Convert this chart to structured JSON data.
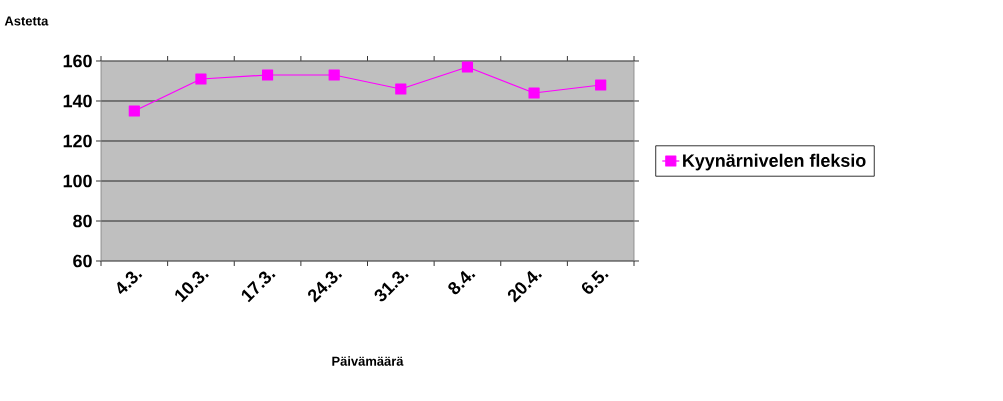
{
  "chart_data": {
    "type": "line",
    "xlabel": "Päivämäärä",
    "ylabel": "Astetta",
    "categories": [
      "4.3.",
      "10.3.",
      "17.3.",
      "24.3.",
      "31.3.",
      "8.4.",
      "20.4.",
      "6.5."
    ],
    "series": [
      {
        "name": "Kyynärnivelen fleksio",
        "color": "#ff00ff",
        "values": [
          135,
          151,
          153,
          153,
          146,
          157,
          144,
          148
        ]
      }
    ],
    "ylim": [
      60,
      160
    ],
    "yticks": [
      60,
      80,
      100,
      120,
      140,
      160
    ],
    "grid": "y",
    "legend": "right",
    "marker": "square",
    "line_style": "solid"
  }
}
